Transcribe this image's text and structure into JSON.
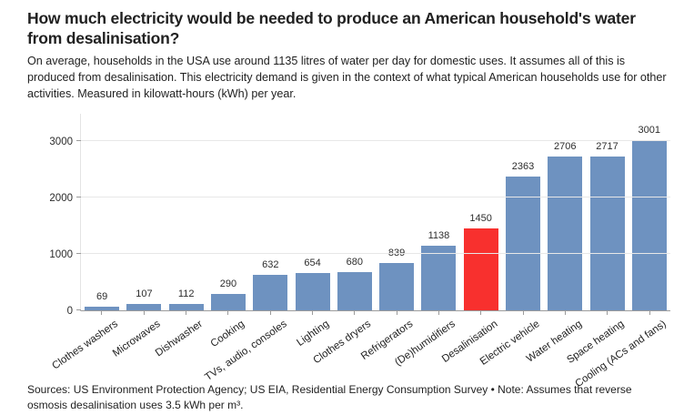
{
  "header": {
    "title": "How much electricity would be needed to produce an American household's water from desalinisation?",
    "subtitle": "On average, households in the USA use around 1135 litres of water per day for domestic uses. It assumes all of this is produced from desalinisation. This electricity demand is given in the context of what typical American households use for other activities. Measured in kilowatt-hours (kWh) per year."
  },
  "footer": {
    "source_note": "Sources: US Environment Protection Agency; US EIA, Residential Energy Consumption Survey • Note: Assumes that reverse osmosis desalinisation uses 3.5 kWh per m³."
  },
  "colors": {
    "bar": "#6E92C0",
    "highlight": "#F8302E",
    "grid": "#E7E7E7",
    "axis": "#9B9B9B",
    "text": "#222222"
  },
  "chart_data": {
    "type": "bar",
    "title": "How much electricity would be needed to produce an American household's water from desalinisation?",
    "categories": [
      "Clothes washers",
      "Microwaves",
      "Dishwasher",
      "Cooking",
      "TVs, audio, consoles",
      "Lighting",
      "Clothes dryers",
      "Refrigerators",
      "(De)humidifiers",
      "Desalinisation",
      "Electric vehicle",
      "Water heating",
      "Space heating",
      "Cooling (ACs and fans)"
    ],
    "values": [
      69,
      107,
      112,
      290,
      632,
      654,
      680,
      839,
      1138,
      1450,
      2363,
      2706,
      2717,
      3001
    ],
    "highlight_index": 9,
    "highlight_category": "Desalinisation",
    "xlabel": "",
    "ylabel": "kWh per year",
    "ylim": [
      0,
      3483
    ],
    "yticks": [
      0,
      1000,
      2000,
      3000
    ],
    "grid": true,
    "legend": false,
    "value_labels": true,
    "bar_color": "#6E92C0",
    "highlight_color": "#F8302E"
  }
}
